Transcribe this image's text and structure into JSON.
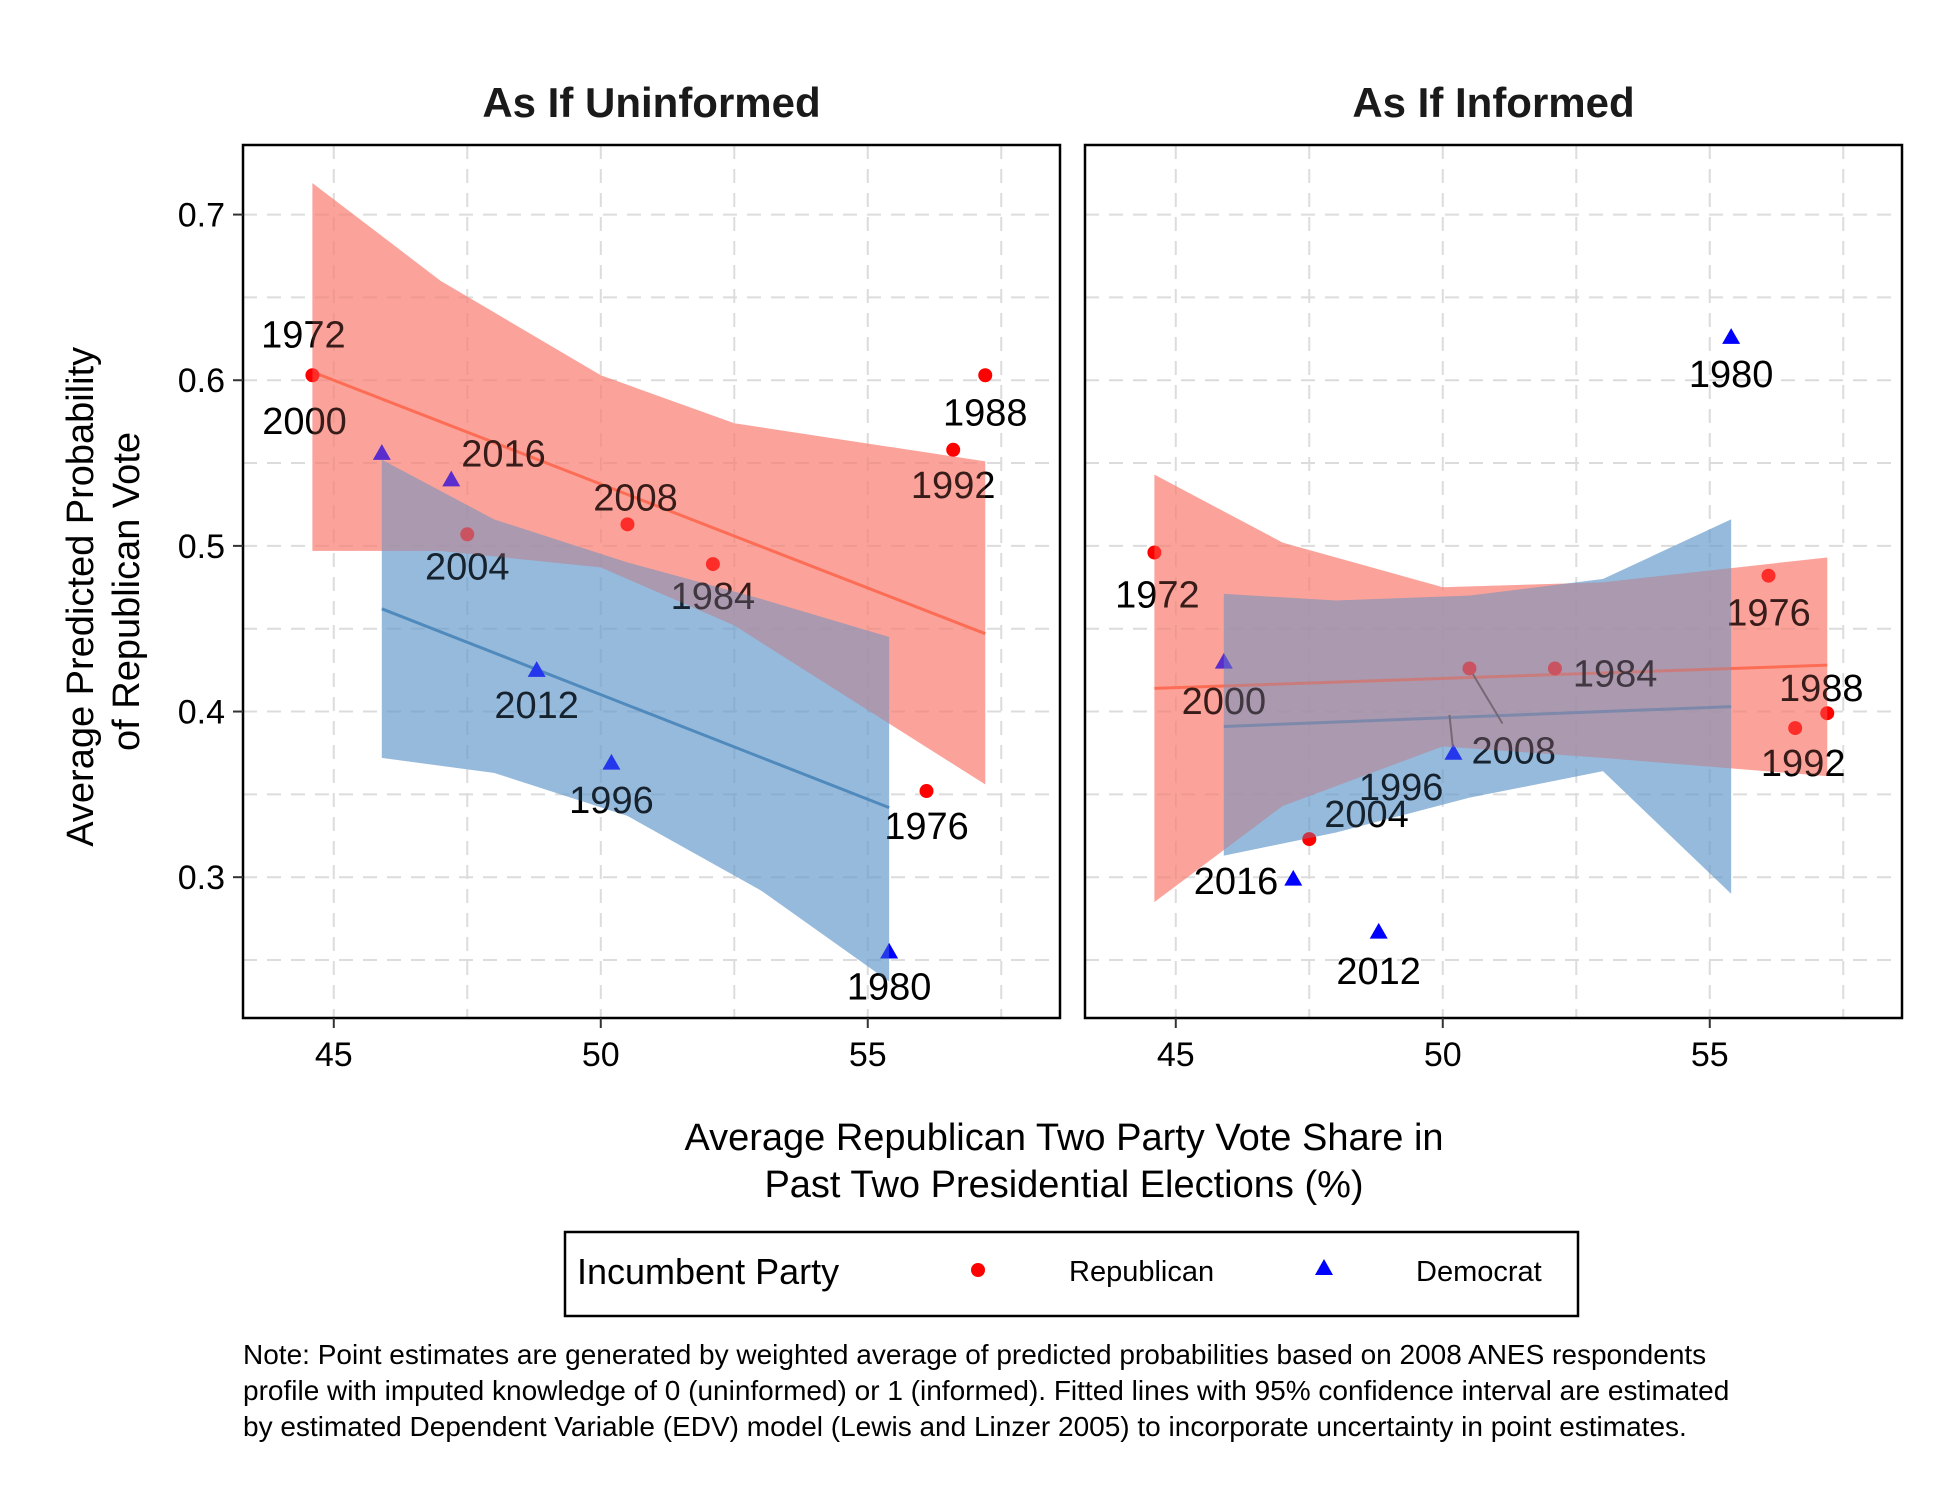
{
  "chart_data": {
    "type": "scatter",
    "ylabel_lines": [
      "Average Predicted Probability",
      "of Republican Vote"
    ],
    "xlabel_lines": [
      "Average Republican Two Party Vote Share in",
      "Past Two Presidential Elections (%)"
    ],
    "xlim": [
      43.3,
      58.6
    ],
    "ylim": [
      0.215,
      0.742
    ],
    "x_ticks": [
      45,
      50,
      55
    ],
    "y_ticks": [
      0.3,
      0.4,
      0.5,
      0.6,
      0.7
    ],
    "y_tick_labels": [
      "0.3",
      "0.4",
      "0.5",
      "0.6",
      "0.7"
    ],
    "grid": true,
    "colors": {
      "republican_point": "#ff0000",
      "democrat_point": "#0000ff",
      "republican_fit": "#ff6347",
      "republican_band": "#fa8072",
      "democrat_fit": "#4682b4",
      "democrat_band": "#6699cc"
    },
    "legend": {
      "title": "Incumbent Party",
      "position": "bottom",
      "items": [
        {
          "label": "Republican",
          "shape": "circle",
          "color": "#ff0000"
        },
        {
          "label": "Democrat",
          "shape": "triangle",
          "color": "#0000ff"
        }
      ]
    },
    "panels": [
      {
        "title": "As If Uninformed",
        "points": [
          {
            "year": "1972",
            "x": 44.6,
            "y": 0.603,
            "party": "Republican"
          },
          {
            "year": "1976",
            "x": 56.1,
            "y": 0.352,
            "party": "Republican"
          },
          {
            "year": "1984",
            "x": 52.1,
            "y": 0.489,
            "party": "Republican"
          },
          {
            "year": "1988",
            "x": 57.2,
            "y": 0.603,
            "party": "Republican"
          },
          {
            "year": "1992",
            "x": 56.6,
            "y": 0.558,
            "party": "Republican"
          },
          {
            "year": "2004",
            "x": 47.5,
            "y": 0.507,
            "party": "Republican"
          },
          {
            "year": "2008",
            "x": 50.5,
            "y": 0.513,
            "party": "Republican"
          },
          {
            "year": "1980",
            "x": 55.4,
            "y": 0.255,
            "party": "Democrat"
          },
          {
            "year": "1996",
            "x": 50.2,
            "y": 0.369,
            "party": "Democrat"
          },
          {
            "year": "2000",
            "x": 45.9,
            "y": 0.556,
            "party": "Democrat"
          },
          {
            "year": "2012",
            "x": 48.8,
            "y": 0.425,
            "party": "Democrat"
          },
          {
            "year": "2016",
            "x": 47.2,
            "y": 0.54,
            "party": "Democrat"
          }
        ],
        "fits": [
          {
            "party": "Republican",
            "x": [
              44.6,
              57.2
            ],
            "y": [
              0.605,
              0.447
            ],
            "band_x": [
              44.6,
              47.0,
              50.0,
              52.5,
              57.2
            ],
            "band_lo": [
              0.497,
              0.497,
              0.487,
              0.452,
              0.356
            ],
            "band_hi": [
              0.719,
              0.66,
              0.603,
              0.574,
              0.551
            ]
          },
          {
            "party": "Democrat",
            "x": [
              45.9,
              55.4
            ],
            "y": [
              0.462,
              0.342
            ],
            "band_x": [
              45.9,
              48.0,
              50.5,
              53.0,
              55.4
            ],
            "band_lo": [
              0.372,
              0.363,
              0.337,
              0.292,
              0.237
            ],
            "band_hi": [
              0.552,
              0.516,
              0.49,
              0.468,
              0.445
            ]
          }
        ]
      },
      {
        "title": "As If Informed",
        "points": [
          {
            "year": "1972",
            "x": 44.6,
            "y": 0.496,
            "party": "Republican"
          },
          {
            "year": "1976",
            "x": 56.1,
            "y": 0.482,
            "party": "Republican"
          },
          {
            "year": "1984",
            "x": 52.1,
            "y": 0.426,
            "party": "Republican"
          },
          {
            "year": "1988",
            "x": 57.2,
            "y": 0.399,
            "party": "Republican"
          },
          {
            "year": "1992",
            "x": 56.6,
            "y": 0.39,
            "party": "Republican"
          },
          {
            "year": "2004",
            "x": 47.5,
            "y": 0.323,
            "party": "Republican"
          },
          {
            "year": "2008",
            "x": 50.5,
            "y": 0.426,
            "party": "Republican"
          },
          {
            "year": "1980",
            "x": 55.4,
            "y": 0.626,
            "party": "Democrat"
          },
          {
            "year": "1996",
            "x": 50.2,
            "y": 0.375,
            "party": "Democrat"
          },
          {
            "year": "2000",
            "x": 45.9,
            "y": 0.43,
            "party": "Democrat"
          },
          {
            "year": "2012",
            "x": 48.8,
            "y": 0.267,
            "party": "Democrat"
          },
          {
            "year": "2016",
            "x": 47.2,
            "y": 0.299,
            "party": "Democrat"
          }
        ],
        "fits": [
          {
            "party": "Republican",
            "x": [
              44.6,
              57.2
            ],
            "y": [
              0.414,
              0.428
            ],
            "band_x": [
              44.6,
              47.0,
              50.0,
              53.0,
              57.2
            ],
            "band_lo": [
              0.285,
              0.343,
              0.379,
              0.372,
              0.361
            ],
            "band_hi": [
              0.543,
              0.502,
              0.475,
              0.478,
              0.493
            ]
          },
          {
            "party": "Democrat",
            "x": [
              45.9,
              55.4
            ],
            "y": [
              0.391,
              0.403
            ],
            "band_x": [
              45.9,
              48.0,
              50.5,
              53.0,
              55.4
            ],
            "band_lo": [
              0.313,
              0.327,
              0.348,
              0.364,
              0.29
            ],
            "band_hi": [
              0.471,
              0.467,
              0.47,
              0.48,
              0.516
            ]
          }
        ]
      }
    ]
  },
  "note_lines": [
    "Note: Point estimates are generated by weighted average of predicted probabilities based on 2008 ANES respondents",
    "profile with imputed knowledge of 0 (uninformed) or 1 (informed). Fitted lines with 95% confidence interval are estimated",
    "by estimated Dependent Variable (EDV) model (Lewis and Linzer 2005) to incorporate uncertainty in point estimates."
  ]
}
